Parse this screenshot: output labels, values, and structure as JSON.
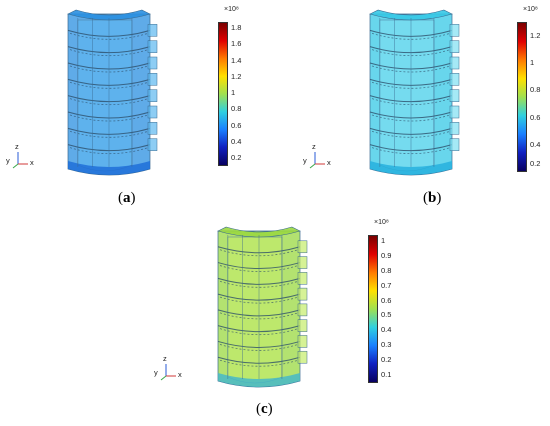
{
  "panels": [
    {
      "label_open": "(",
      "letter": "a",
      "label_close": ")",
      "exponent": "×10⁸",
      "ticks": [
        "1.8",
        "1.6",
        "1.4",
        "1.2",
        "1",
        "0.8",
        "0.6",
        "0.4",
        "0.2"
      ],
      "fill_color": "#2a8fe0",
      "fill_color_light": "#5db8f0",
      "bottom_color": "#1e6fd8"
    },
    {
      "label_open": "(",
      "letter": "b",
      "label_close": ")",
      "exponent": "×10⁸",
      "ticks": [
        "1.2",
        "1",
        "0.8",
        "0.6",
        "0.4",
        "0.2"
      ],
      "fill_color": "#36c8e6",
      "fill_color_light": "#7fe0f2",
      "bottom_color": "#27b0de"
    },
    {
      "label_open": "(",
      "letter": "c",
      "label_close": ")",
      "exponent": "×10⁸",
      "ticks": [
        "1",
        "0.9",
        "0.8",
        "0.7",
        "0.6",
        "0.5",
        "0.4",
        "0.3",
        "0.2",
        "0.1"
      ],
      "fill_color": "#9ad840",
      "fill_color_light": "#c4ec6a",
      "bottom_color": "#47b8c8"
    }
  ],
  "axis_labels": {
    "z": "z",
    "y": "y",
    "x": "x"
  }
}
